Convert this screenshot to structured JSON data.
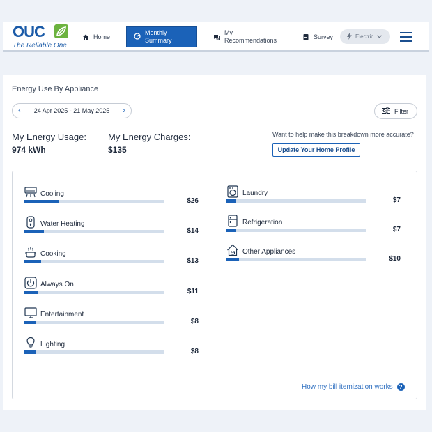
{
  "header": {
    "logo_text": "OUC",
    "logo_tagline": "The Reliable One",
    "nav": {
      "home": "Home",
      "monthly_summary_line1": "Monthly",
      "monthly_summary_line2": "Summary",
      "recommendations_line1": "My",
      "recommendations_line2": "Recommendations",
      "survey": "Survey",
      "fuel_select": "Electric"
    },
    "colors": {
      "brand_blue": "#1b62b8",
      "leaf_green": "#6cb33f"
    }
  },
  "breakdown_page": {
    "title": "Energy Use By Appliance",
    "date_range": "24 Apr 2025 - 21 May 2025",
    "filter_label": "Filter",
    "usage_label": "My Energy Usage:",
    "usage_value": "974 kWh",
    "charges_label": "My Energy Charges:",
    "charges_value": "$135",
    "help_question": "Want to help make this breakdown more accurate?",
    "update_button": "Update Your Home Profile",
    "itemization_link": "How my bill itemization works",
    "appliances_left": [
      {
        "label": "Cooling",
        "amount": "$26",
        "share": 0.25,
        "icon": "air-conditioner-icon"
      },
      {
        "label": "Water Heating",
        "amount": "$14",
        "share": 0.14,
        "icon": "water-heater-icon"
      },
      {
        "label": "Cooking",
        "amount": "$13",
        "share": 0.12,
        "icon": "cooking-pot-icon"
      },
      {
        "label": "Always On",
        "amount": "$11",
        "share": 0.1,
        "icon": "power-icon"
      },
      {
        "label": "Entertainment",
        "amount": "$8",
        "share": 0.08,
        "icon": "monitor-icon"
      },
      {
        "label": "Lighting",
        "amount": "$8",
        "share": 0.08,
        "icon": "light-bulb-icon"
      }
    ],
    "appliances_right": [
      {
        "label": "Laundry",
        "amount": "$7",
        "share": 0.07,
        "icon": "washing-machine-icon"
      },
      {
        "label": "Refrigeration",
        "amount": "$7",
        "share": 0.07,
        "icon": "refrigerator-icon"
      },
      {
        "label": "Other Appliances",
        "amount": "$10",
        "share": 0.09,
        "icon": "house-plug-icon"
      }
    ]
  }
}
